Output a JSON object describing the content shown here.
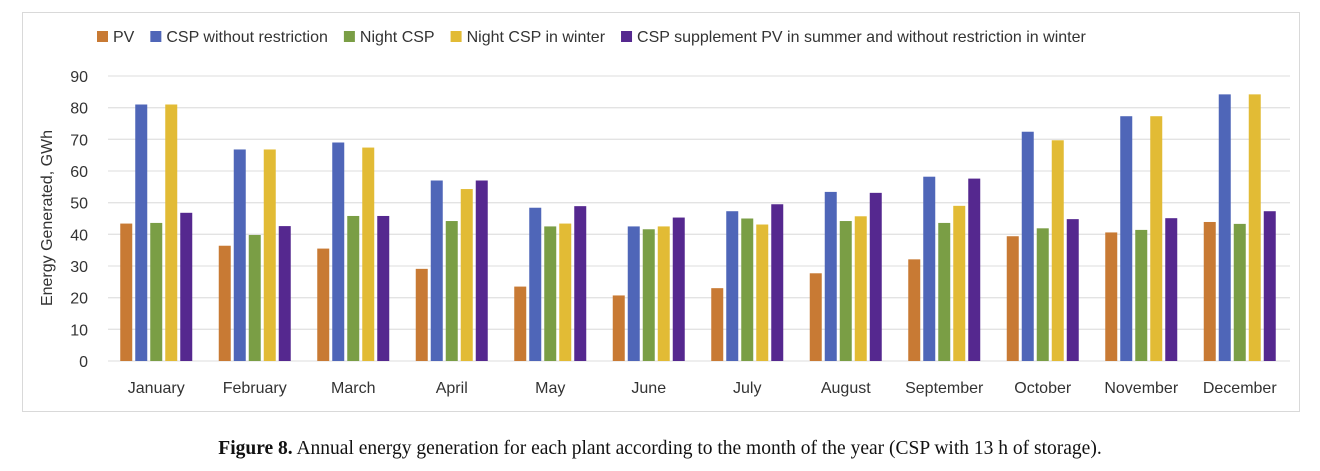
{
  "chart_data": {
    "type": "bar",
    "title": "",
    "xlabel": "",
    "ylabel": "Energy Generated, GWh",
    "ylim": [
      0,
      90
    ],
    "yticks": [
      0,
      10,
      20,
      30,
      40,
      50,
      60,
      70,
      80,
      90
    ],
    "grid": true,
    "legend_position": "top",
    "categories": [
      "January",
      "February",
      "March",
      "April",
      "May",
      "June",
      "July",
      "August",
      "September",
      "October",
      "November",
      "December"
    ],
    "series": [
      {
        "name": "PV",
        "color": "#c87a34",
        "values": [
          43.4,
          36.4,
          35.5,
          29.1,
          23.5,
          20.7,
          23.0,
          27.7,
          32.1,
          39.4,
          40.6,
          43.9
        ]
      },
      {
        "name": "CSP without restriction",
        "color": "#4f66b8",
        "values": [
          81.0,
          66.8,
          69.0,
          57.0,
          48.4,
          42.5,
          47.3,
          53.4,
          58.2,
          72.4,
          77.3,
          84.2
        ]
      },
      {
        "name": "Night CSP",
        "color": "#7a9e45",
        "values": [
          43.6,
          39.8,
          45.8,
          44.2,
          42.5,
          41.6,
          45.0,
          44.2,
          43.6,
          41.9,
          41.4,
          43.3
        ]
      },
      {
        "name": "Night CSP in winter",
        "color": "#e2bb35",
        "values": [
          81.0,
          66.8,
          67.4,
          54.3,
          43.4,
          42.5,
          43.1,
          45.7,
          49.0,
          69.7,
          77.3,
          84.2
        ]
      },
      {
        "name": "CSP supplement PV in summer and without restriction in winter",
        "color": "#55288f",
        "values": [
          46.8,
          42.6,
          45.8,
          57.0,
          48.9,
          45.3,
          49.5,
          53.1,
          57.6,
          44.8,
          45.1,
          47.3
        ]
      }
    ]
  },
  "caption": {
    "label": "Figure 8.",
    "text": " Annual energy generation for each plant according to the month of the year (CSP with 13 h of storage)."
  }
}
